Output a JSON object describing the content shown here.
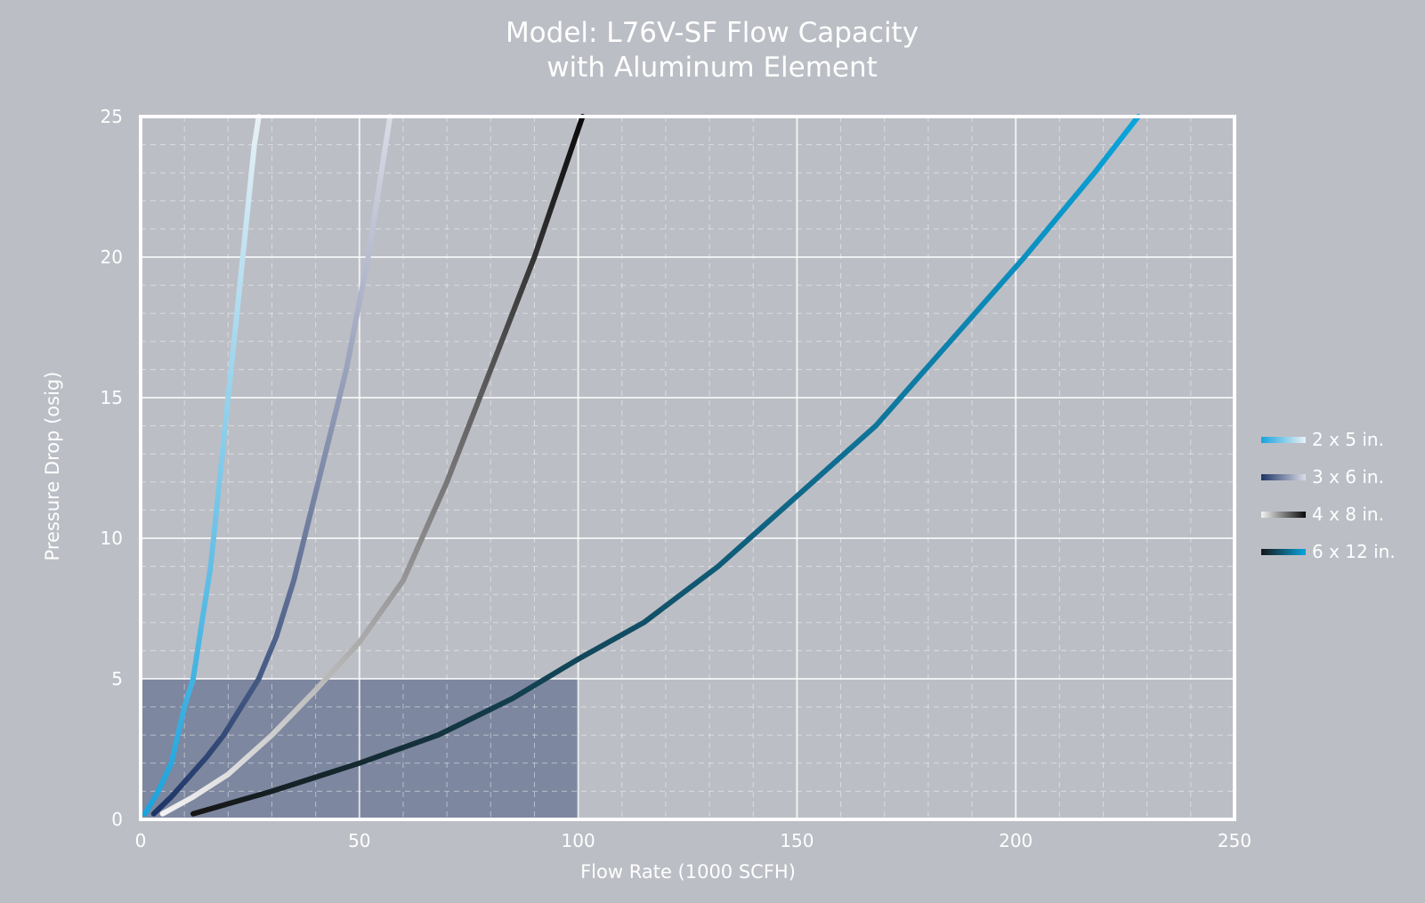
{
  "chart_data": {
    "type": "line",
    "title_line1": "Model: L76V-SF Flow Capacity",
    "title_line2": "with Aluminum Element",
    "xlabel": "Flow Rate (1000 SCFH)",
    "ylabel": "Pressure Drop (osig)",
    "xlim": [
      0,
      250
    ],
    "ylim": [
      0,
      25
    ],
    "x_ticks": [
      "0",
      "50",
      "100",
      "150",
      "200",
      "250"
    ],
    "y_ticks": [
      "0",
      "5",
      "10",
      "15",
      "20",
      "25"
    ],
    "x_tick_values": [
      0,
      50,
      100,
      150,
      200,
      250
    ],
    "y_tick_values": [
      0,
      5,
      10,
      15,
      20,
      25
    ],
    "grid": "major solid, minor dashed",
    "legend_position": "right",
    "highlight_region": {
      "x": [
        0,
        100
      ],
      "y": [
        0,
        5
      ],
      "color": "#7d879f"
    },
    "series": [
      {
        "name": "2 x 5 in.",
        "color_start": "#1aa3dd",
        "color_end": "#e8f1f6",
        "x": [
          1,
          4,
          7,
          10,
          12,
          14,
          16,
          18,
          20,
          22,
          24,
          26,
          27
        ],
        "y": [
          0.2,
          1,
          2,
          4,
          5,
          7,
          9,
          12,
          15,
          18,
          21,
          24,
          25
        ]
      },
      {
        "name": "3 x 6 in.",
        "color_start": "#1c3567",
        "color_end": "#dcdce8",
        "x": [
          3,
          7,
          11,
          15,
          19,
          23,
          27,
          31,
          35,
          39,
          43,
          47,
          52,
          57
        ],
        "y": [
          0.2,
          0.8,
          1.5,
          2.2,
          3,
          4,
          5,
          6.5,
          8.5,
          11,
          13.5,
          16,
          20,
          25
        ]
      },
      {
        "name": "4 x 8 in.",
        "color_start": "#f2f2f2",
        "color_end": "#0a0a0a",
        "x": [
          5,
          12,
          20,
          30,
          40,
          50,
          60,
          70,
          80,
          90,
          101
        ],
        "y": [
          0.2,
          0.8,
          1.6,
          3,
          4.6,
          6.3,
          8.5,
          12,
          16,
          20,
          25
        ]
      },
      {
        "name": "6 x 12 in.",
        "color_start": "#161616",
        "color_end": "#0aa5dd",
        "x": [
          12,
          30,
          50,
          68,
          85,
          100,
          115,
          132,
          150,
          168,
          185,
          202,
          218,
          228
        ],
        "y": [
          0.2,
          1,
          2,
          3,
          4.3,
          5.7,
          7,
          9,
          11.5,
          14,
          17,
          20,
          23,
          25
        ]
      }
    ]
  }
}
